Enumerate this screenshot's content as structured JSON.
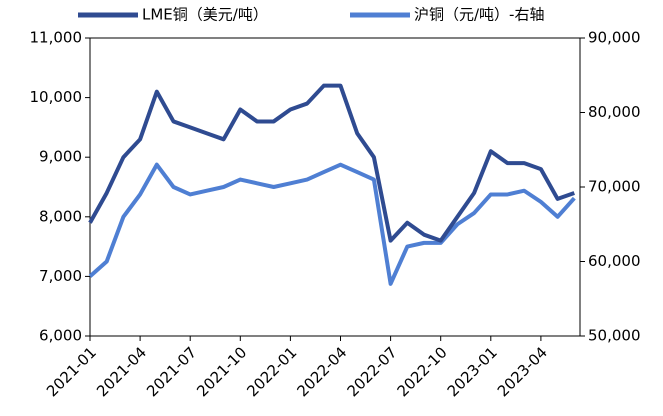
{
  "chart_data": {
    "type": "line",
    "categories": [
      "2021-01",
      null,
      null,
      "2021-04",
      null,
      null,
      "2021-07",
      null,
      null,
      "2021-10",
      null,
      null,
      "2022-01",
      null,
      null,
      "2022-04",
      null,
      null,
      "2022-07",
      null,
      null,
      "2022-10",
      null,
      null,
      "2023-01",
      null,
      null,
      "2023-04",
      null,
      null
    ],
    "series": [
      {
        "name": "LME铜（美元/吨）",
        "color": "#2f4b91",
        "values": [
          7900,
          8400,
          9000,
          9300,
          10100,
          9600,
          9500,
          9400,
          9300,
          9800,
          9600,
          9600,
          9800,
          9900,
          10200,
          10200,
          9400,
          9000,
          7600,
          7900,
          7700,
          7600,
          8000,
          8400,
          9100,
          8900,
          8900,
          8800,
          8300,
          8400
        ]
      },
      {
        "name": "沪铜（元/吨）-右轴",
        "color": "#4f7fd3",
        "axis": "y2",
        "values": [
          58000,
          60000,
          66000,
          69000,
          73000,
          70000,
          69000,
          69500,
          70000,
          71000,
          70500,
          70000,
          70500,
          71000,
          72000,
          73000,
          72000,
          71000,
          57000,
          62000,
          62500,
          62500,
          65000,
          66500,
          69000,
          69000,
          69500,
          68000,
          66000,
          68500
        ]
      }
    ],
    "ylim": [
      6000,
      11000
    ],
    "yticks": [
      {
        "value": 6000,
        "label": "6,000"
      },
      {
        "value": 7000,
        "label": "7,000"
      },
      {
        "value": 8000,
        "label": "8,000"
      },
      {
        "value": 9000,
        "label": "9,000"
      },
      {
        "value": 10000,
        "label": "10,000"
      },
      {
        "value": 11000,
        "label": "11,000"
      }
    ],
    "y2lim": [
      50000,
      90000
    ],
    "y2ticks": [
      {
        "value": 50000,
        "label": "50,000"
      },
      {
        "value": 60000,
        "label": "60,000"
      },
      {
        "value": 70000,
        "label": "70,000"
      },
      {
        "value": 80000,
        "label": "80,000"
      },
      {
        "value": 90000,
        "label": "90,000"
      }
    ]
  }
}
